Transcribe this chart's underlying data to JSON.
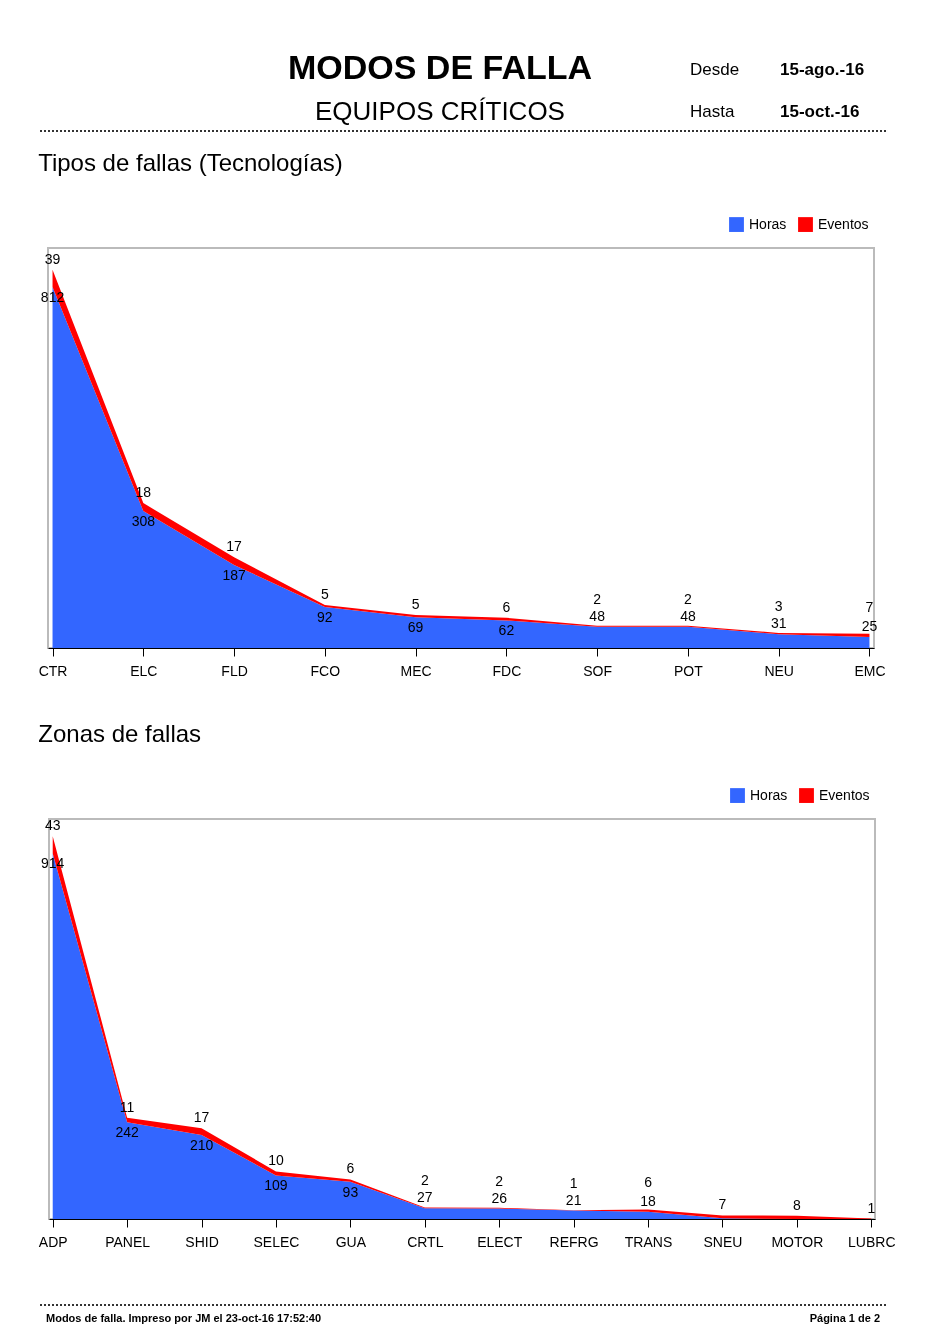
{
  "chart_data": [
    {
      "type": "other",
      "title": "MODOS DE FALLA",
      "subtitle": "EQUIPOS CRÍTICOS",
      "annotations": [
        "Desde",
        "15-ago.-16",
        "Hasta",
        "15-oct.-16"
      ]
    },
    {
      "type": "area",
      "title": "Tipos de fallas (Tecnologías)",
      "stacked": true,
      "data_labels": true,
      "legend": "top right",
      "categories": [
        "CTR",
        "ELC",
        "FLD",
        "FCO",
        "MEC",
        "FDC",
        "SOF",
        "POT",
        "NEU",
        "EMC"
      ],
      "series": [
        {
          "name": "Horas",
          "color": "#3366ff",
          "values": [
            812,
            308,
            187,
            92,
            69,
            62,
            48,
            48,
            31,
            25
          ]
        },
        {
          "name": "Eventos",
          "color": "#ff0000",
          "values": [
            39,
            18,
            17,
            5,
            5,
            6,
            2,
            2,
            3,
            7
          ]
        }
      ]
    },
    {
      "type": "area",
      "title": "Zonas de fallas",
      "stacked": true,
      "legend": "top right",
      "categories": [
        "ADP",
        "PANEL",
        "SHID",
        "SELEC",
        "GUA",
        "CRTL",
        "ELECT",
        "REFRG",
        "TRANS",
        "SNEU",
        "MOTOR",
        "LUBRC"
      ],
      "series": [
        {
          "name": "Horas",
          "color": "#3366ff",
          "values": [
            914,
            242,
            210,
            109,
            93,
            27,
            26,
            21,
            18,
            2,
            0,
            0
          ],
          "value_labels": [
            "914",
            "242",
            "210",
            "109",
            "93",
            "27",
            "26",
            "21",
            "18",
            null,
            null,
            null
          ]
        },
        {
          "name": "Eventos",
          "color": "#ff0000",
          "values": [
            43,
            11,
            17,
            10,
            6,
            2,
            2,
            1,
            6,
            7,
            8,
            1
          ],
          "value_labels": [
            "43",
            "11",
            "17",
            "10",
            "6",
            "2",
            "2",
            "1",
            "6",
            "7",
            "8",
            "1"
          ]
        }
      ]
    },
    {
      "type": "other",
      "annotations": [
        "Modos de falla. Impreso por JM el 23-oct-16 17:52:40",
        "Página 1 de 2"
      ]
    }
  ]
}
